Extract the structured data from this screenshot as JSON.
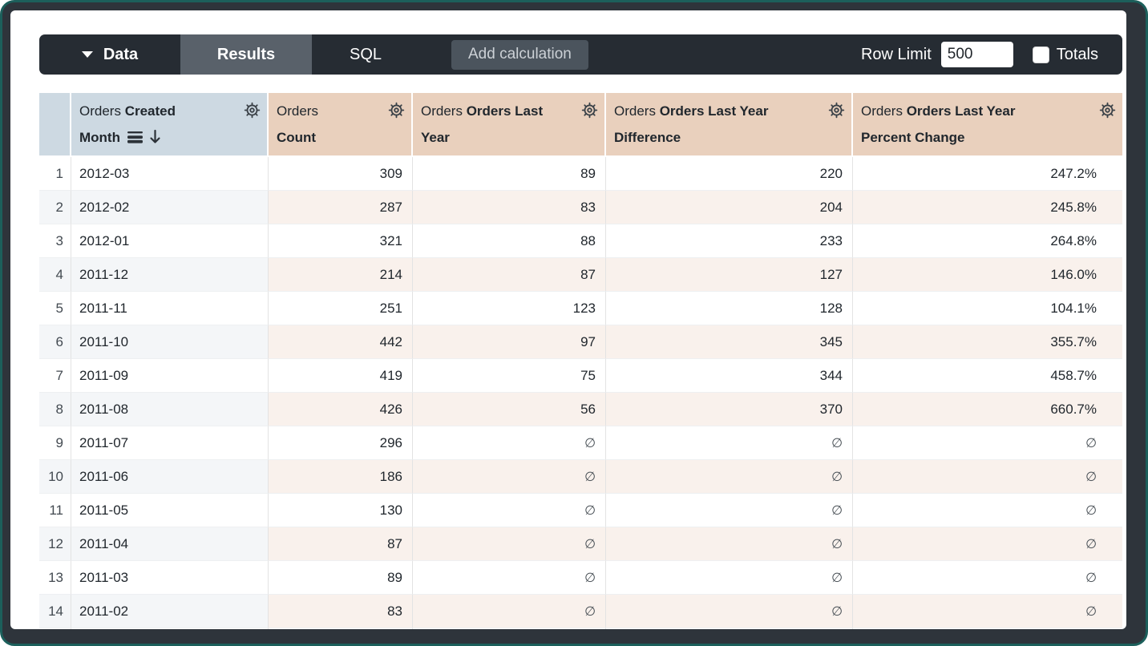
{
  "toolbar": {
    "data_label": "Data",
    "results_label": "Results",
    "sql_label": "SQL",
    "add_calculation_label": "Add calculation",
    "row_limit_label": "Row Limit",
    "row_limit_value": "500",
    "totals_label": "Totals",
    "totals_checked": false
  },
  "table": {
    "null_symbol": "∅",
    "columns": [
      {
        "slug": "created-month",
        "prefix": "Orders",
        "label": "Created Month",
        "kind": "dimension",
        "sorted": "desc"
      },
      {
        "slug": "count",
        "prefix": "Orders",
        "label": "Count",
        "kind": "measure"
      },
      {
        "slug": "orders-last-year",
        "prefix": "Orders",
        "label": "Orders Last Year",
        "kind": "measure"
      },
      {
        "slug": "orders-last-year-difference",
        "prefix": "Orders",
        "label": "Orders Last Year Difference",
        "kind": "measure"
      },
      {
        "slug": "orders-last-year-percent-change",
        "prefix": "Orders",
        "label": "Orders Last Year Percent Change",
        "kind": "measure"
      }
    ],
    "rows": [
      {
        "num": "1",
        "cells": [
          "2012-03",
          "309",
          "89",
          "220",
          "247.2%"
        ]
      },
      {
        "num": "2",
        "cells": [
          "2012-02",
          "287",
          "83",
          "204",
          "245.8%"
        ]
      },
      {
        "num": "3",
        "cells": [
          "2012-01",
          "321",
          "88",
          "233",
          "264.8%"
        ]
      },
      {
        "num": "4",
        "cells": [
          "2011-12",
          "214",
          "87",
          "127",
          "146.0%"
        ]
      },
      {
        "num": "5",
        "cells": [
          "2011-11",
          "251",
          "123",
          "128",
          "104.1%"
        ]
      },
      {
        "num": "6",
        "cells": [
          "2011-10",
          "442",
          "97",
          "345",
          "355.7%"
        ]
      },
      {
        "num": "7",
        "cells": [
          "2011-09",
          "419",
          "75",
          "344",
          "458.7%"
        ]
      },
      {
        "num": "8",
        "cells": [
          "2011-08",
          "426",
          "56",
          "370",
          "660.7%"
        ]
      },
      {
        "num": "9",
        "cells": [
          "2011-07",
          "296",
          "∅",
          "∅",
          "∅"
        ]
      },
      {
        "num": "10",
        "cells": [
          "2011-06",
          "186",
          "∅",
          "∅",
          "∅"
        ]
      },
      {
        "num": "11",
        "cells": [
          "2011-05",
          "130",
          "∅",
          "∅",
          "∅"
        ]
      },
      {
        "num": "12",
        "cells": [
          "2011-04",
          "87",
          "∅",
          "∅",
          "∅"
        ]
      },
      {
        "num": "13",
        "cells": [
          "2011-03",
          "89",
          "∅",
          "∅",
          "∅"
        ]
      },
      {
        "num": "14",
        "cells": [
          "2011-02",
          "83",
          "∅",
          "∅",
          "∅"
        ]
      }
    ]
  },
  "colors": {
    "toolbar_bg": "#262c33",
    "active_tab_bg": "#59616a",
    "button_bg": "#4b545d",
    "dimension_header_bg": "#cdd9e2",
    "measure_header_bg": "#e9d0bd",
    "dimension_stripe": "#f4f6f8",
    "measure_stripe": "#f9f1ec",
    "frame_accent": "#1c5f5b"
  }
}
